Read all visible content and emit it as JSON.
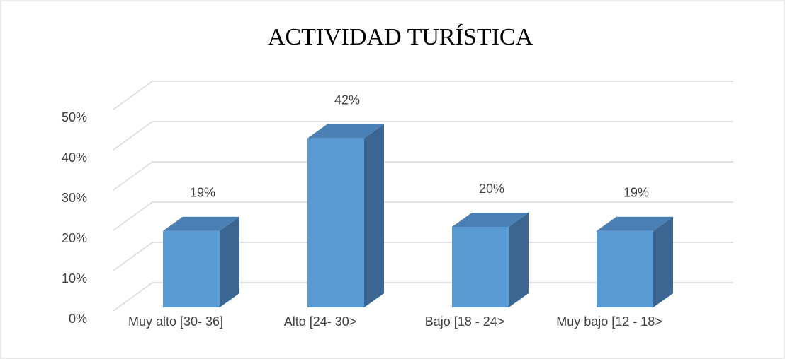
{
  "chart_data": {
    "type": "bar3d",
    "title": "ACTIVIDAD TURÍSTICA",
    "categories": [
      "Muy alto [30- 36]",
      "Alto [24- 30>",
      "Bajo [18 - 24>",
      "Muy bajo [12 - 18>"
    ],
    "values": [
      19,
      42,
      20,
      19
    ],
    "value_labels": [
      "19%",
      "42%",
      "20%",
      "19%"
    ],
    "color": "#5b9bd5",
    "ylim": [
      0,
      50
    ],
    "yticks": [
      {
        "value": 0,
        "label": "0%"
      },
      {
        "value": 10,
        "label": "10%"
      },
      {
        "value": 20,
        "label": "20%"
      },
      {
        "value": 30,
        "label": "30%"
      },
      {
        "value": 40,
        "label": "40%"
      },
      {
        "value": 50,
        "label": "50%"
      }
    ],
    "grid": true
  }
}
